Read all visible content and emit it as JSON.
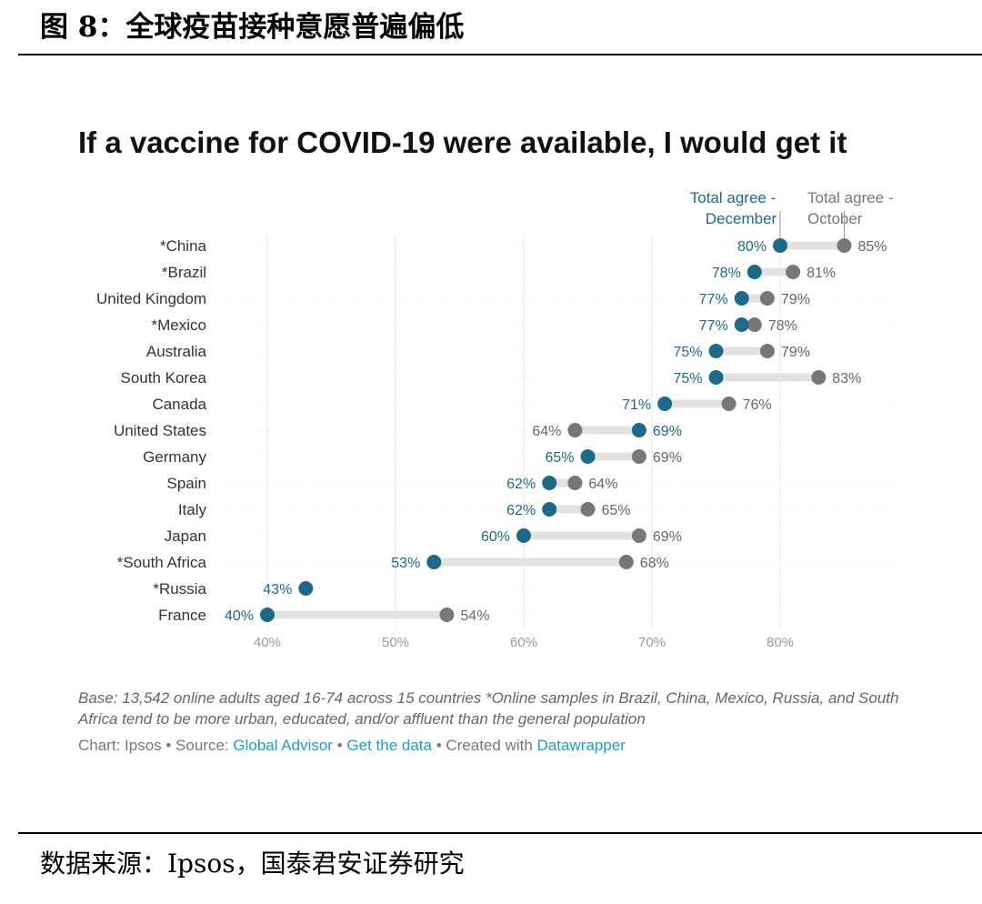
{
  "figure": {
    "title": "图 8：全球疫苗接种意愿普遍偏低",
    "source": "数据来源：Ipsos，国泰君安证券研究"
  },
  "chart_data": {
    "type": "dot",
    "title": "If a vaccine for COVID-19 were available, I would get it",
    "xlabel": "",
    "ylabel": "",
    "xlim": [
      40,
      85
    ],
    "xticks": [
      "40%",
      "50%",
      "60%",
      "70%",
      "80%"
    ],
    "grid": true,
    "legend_placement": "top-right",
    "categories": [
      "*China",
      "*Brazil",
      "United Kingdom",
      "*Mexico",
      "Australia",
      "South Korea",
      "Canada",
      "United States",
      "Germany",
      "Spain",
      "Italy",
      "Japan",
      "*South Africa",
      "*Russia",
      "France"
    ],
    "series": [
      {
        "name": "Total agree - December",
        "color": "#1c6a88",
        "values": [
          80,
          78,
          77,
          77,
          75,
          75,
          71,
          69,
          65,
          62,
          62,
          60,
          53,
          43,
          40
        ],
        "labels": [
          "80%",
          "78%",
          "77%",
          "77%",
          "75%",
          "75%",
          "71%",
          "69%",
          "65%",
          "62%",
          "62%",
          "60%",
          "53%",
          "43%",
          "40%"
        ]
      },
      {
        "name": "Total agree - October",
        "color": "#777777",
        "values": [
          85,
          81,
          79,
          78,
          79,
          83,
          76,
          64,
          69,
          64,
          65,
          69,
          68,
          null,
          54
        ],
        "labels": [
          "85%",
          "81%",
          "79%",
          "78%",
          "79%",
          "83%",
          "76%",
          "64%",
          "69%",
          "64%",
          "65%",
          "69%",
          "68%",
          "",
          "54%"
        ]
      }
    ],
    "legend": {
      "december": [
        "Total agree -",
        "December"
      ],
      "october": [
        "Total agree -",
        "October"
      ]
    }
  },
  "footer": {
    "note": "Base: 13,542 online adults aged 16-74 across 15 countries *Online samples in Brazil, China, Mexico, Russia, and South Africa tend to be more urban, educated, and/or affluent than the general population",
    "credit_prefix": "Chart: Ipsos • Source: ",
    "source_link": "Global Advisor",
    "sep1": " • ",
    "data_link": "Get the data",
    "sep2": " • Created with ",
    "tool_link": "Datawrapper"
  },
  "colors": {
    "december": "#1c6a88",
    "october": "#777777",
    "connector": "#e2e2e2",
    "grid": "#e6e6e6",
    "link": "#1a9ec4"
  }
}
